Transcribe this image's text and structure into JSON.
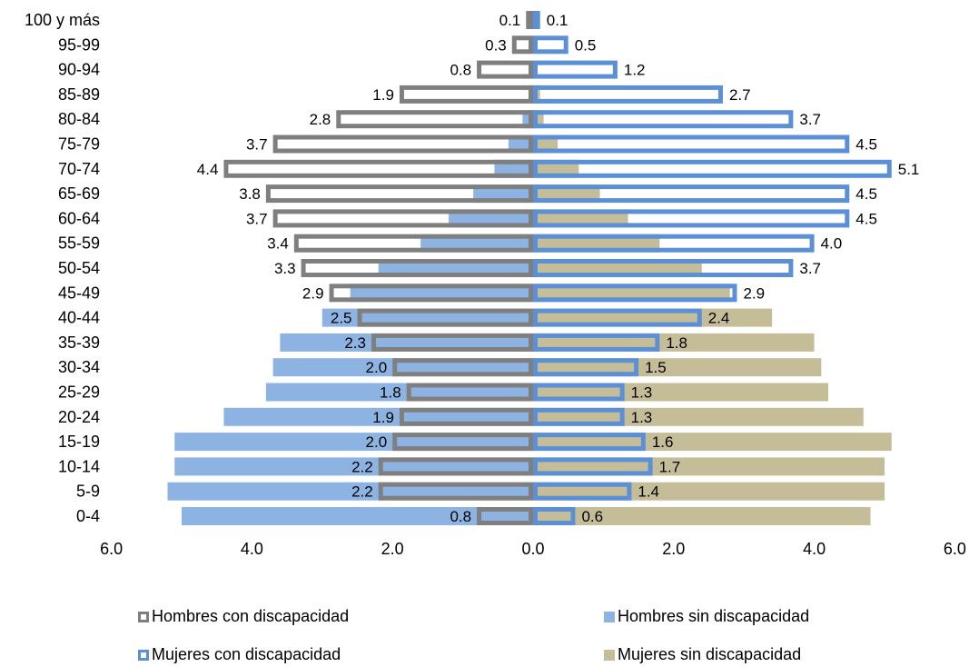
{
  "chart_data": {
    "type": "bar",
    "orientation": "horizontal",
    "layout": "population-pyramid",
    "categories": [
      "100 y más",
      "95-99",
      "90-94",
      "85-89",
      "80-84",
      "75-79",
      "70-74",
      "65-69",
      "60-64",
      "55-59",
      "50-54",
      "45-49",
      "40-44",
      "35-39",
      "30-34",
      "25-29",
      "20-24",
      "15-19",
      "10-14",
      "5-9",
      "0-4"
    ],
    "series": [
      {
        "name": "Hombres con discapacidad",
        "side": "left",
        "style": "outline",
        "color": "#7f7f7f",
        "values": [
          0.1,
          0.3,
          0.8,
          1.9,
          2.8,
          3.7,
          4.4,
          3.8,
          3.7,
          3.4,
          3.3,
          2.9,
          2.5,
          2.3,
          2.0,
          1.8,
          1.9,
          2.0,
          2.2,
          2.2,
          0.8
        ],
        "labels": [
          "0.1",
          "0.3",
          "0.8",
          "1.9",
          "2.8",
          "3.7",
          "4.4",
          "3.8",
          "3.7",
          "3.4",
          "3.3",
          "2.9",
          "2.5",
          "2.3",
          "2.0",
          "1.8",
          "1.9",
          "2.0",
          "2.2",
          "2.2",
          "0.8"
        ]
      },
      {
        "name": "Hombres sin discapacidad",
        "side": "left",
        "style": "fill",
        "color": "#8db3e2",
        "values": [
          0.0,
          0.0,
          0.0,
          0.05,
          0.15,
          0.35,
          0.55,
          0.85,
          1.2,
          1.6,
          2.2,
          2.6,
          3.0,
          3.6,
          3.7,
          3.8,
          4.4,
          5.1,
          5.1,
          5.2,
          5.0
        ]
      },
      {
        "name": "Mujeres con discapacidad",
        "side": "right",
        "style": "outline",
        "color": "#5b8fd6",
        "values": [
          0.1,
          0.5,
          1.2,
          2.7,
          3.7,
          4.5,
          5.1,
          4.5,
          4.5,
          4.0,
          3.7,
          2.9,
          2.4,
          1.8,
          1.5,
          1.3,
          1.3,
          1.6,
          1.7,
          1.4,
          0.6
        ],
        "labels": [
          "0.1",
          "0.5",
          "1.2",
          "2.7",
          "3.7",
          "4.5",
          "5.1",
          "4.5",
          "4.5",
          "4.0",
          "3.7",
          "2.9",
          "2.4",
          "1.8",
          "1.5",
          "1.3",
          "1.3",
          "1.6",
          "1.7",
          "1.4",
          "0.6"
        ]
      },
      {
        "name": "Mujeres sin discapacidad",
        "side": "right",
        "style": "fill",
        "color": "#c4bd97",
        "values": [
          0.0,
          0.0,
          0.0,
          0.1,
          0.15,
          0.35,
          0.65,
          0.95,
          1.35,
          1.8,
          2.4,
          2.8,
          3.4,
          4.0,
          4.1,
          4.2,
          4.7,
          5.1,
          5.0,
          5.0,
          4.8
        ]
      }
    ],
    "xticks": [
      "6.0",
      "4.0",
      "2.0",
      "0.0",
      "2.0",
      "4.0",
      "6.0"
    ],
    "xlim": [
      -6,
      6
    ],
    "xlabel": "",
    "ylabel": "",
    "legend_position": "bottom"
  },
  "legend": {
    "hombres_con": "Hombres con discapacidad",
    "hombres_sin": "Hombres sin discapacidad",
    "mujeres_con": "Mujeres con discapacidad",
    "mujeres_sin": "Mujeres sin discapacidad"
  }
}
